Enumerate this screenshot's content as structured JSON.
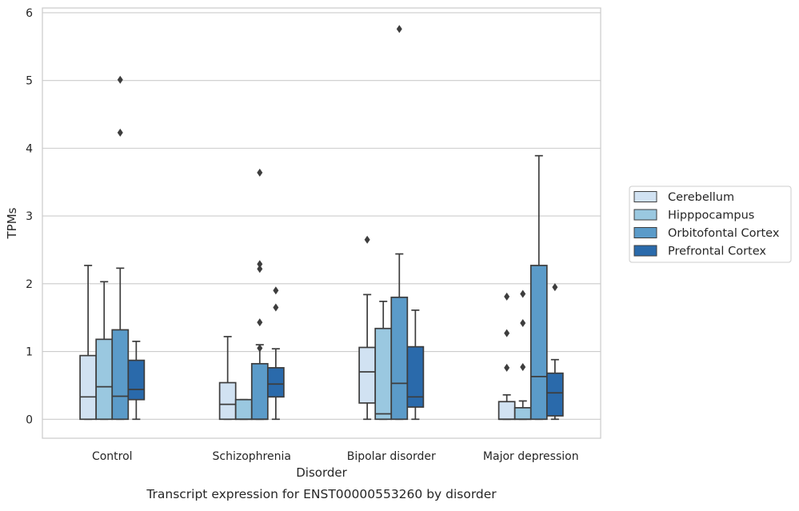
{
  "caption": "Transcript expression for ENST00000553260 by disorder",
  "chart_data": {
    "type": "boxplot",
    "xlabel": "Disorder",
    "ylabel": "TPMs",
    "ylim": [
      -0.28,
      6.07
    ],
    "yticks": [
      0,
      1,
      2,
      3,
      4,
      5,
      6
    ],
    "grid": "horizontal",
    "legend_position": "right",
    "categories": [
      "Control",
      "Schizophrenia",
      "Bipolar disorder",
      "Major depression"
    ],
    "series": [
      {
        "name": "Cerebellum",
        "color": "#d1e2f2",
        "boxes": [
          {
            "whislo": 0.0,
            "q1": 0.0,
            "med": 0.33,
            "q3": 0.94,
            "whishi": 2.27,
            "fliers": []
          },
          {
            "whislo": 0.0,
            "q1": 0.0,
            "med": 0.22,
            "q3": 0.54,
            "whishi": 1.22,
            "fliers": []
          },
          {
            "whislo": 0.0,
            "q1": 0.24,
            "med": 0.7,
            "q3": 1.06,
            "whishi": 1.84,
            "fliers": [
              2.65
            ]
          },
          {
            "whislo": 0.0,
            "q1": 0.0,
            "med": 0.0,
            "q3": 0.26,
            "whishi": 0.36,
            "fliers": [
              0.76,
              1.27,
              1.81
            ]
          }
        ]
      },
      {
        "name": "Hipppocampus",
        "color": "#9ac8e0",
        "boxes": [
          {
            "whislo": 0.0,
            "q1": 0.0,
            "med": 0.48,
            "q3": 1.18,
            "whishi": 2.03,
            "fliers": []
          },
          {
            "whislo": 0.0,
            "q1": 0.0,
            "med": 0.0,
            "q3": 0.29,
            "whishi": 0.29,
            "fliers": []
          },
          {
            "whislo": 0.0,
            "q1": 0.0,
            "med": 0.08,
            "q3": 1.34,
            "whishi": 1.74,
            "fliers": []
          },
          {
            "whislo": 0.0,
            "q1": 0.0,
            "med": 0.0,
            "q3": 0.17,
            "whishi": 0.27,
            "fliers": [
              0.77,
              1.42,
              1.85
            ]
          }
        ]
      },
      {
        "name": "Orbitofontal Cortex",
        "color": "#5b9bc9",
        "boxes": [
          {
            "whislo": 0.0,
            "q1": 0.0,
            "med": 0.34,
            "q3": 1.32,
            "whishi": 2.23,
            "fliers": [
              4.23,
              5.01
            ]
          },
          {
            "whislo": 0.0,
            "q1": 0.0,
            "med": 0.0,
            "q3": 0.82,
            "whishi": 1.1,
            "fliers": [
              1.05,
              1.43,
              2.22,
              2.29,
              3.64
            ]
          },
          {
            "whislo": 0.0,
            "q1": 0.0,
            "med": 0.53,
            "q3": 1.8,
            "whishi": 2.44,
            "fliers": [
              5.76
            ]
          },
          {
            "whislo": 0.0,
            "q1": 0.0,
            "med": 0.63,
            "q3": 2.27,
            "whishi": 3.89,
            "fliers": []
          }
        ]
      },
      {
        "name": "Prefrontal Cortex",
        "color": "#2a6aab",
        "boxes": [
          {
            "whislo": 0.0,
            "q1": 0.29,
            "med": 0.44,
            "q3": 0.87,
            "whishi": 1.15,
            "fliers": []
          },
          {
            "whislo": 0.0,
            "q1": 0.33,
            "med": 0.52,
            "q3": 0.76,
            "whishi": 1.04,
            "fliers": [
              1.65,
              1.9
            ]
          },
          {
            "whislo": 0.0,
            "q1": 0.18,
            "med": 0.33,
            "q3": 1.07,
            "whishi": 1.61,
            "fliers": []
          },
          {
            "whislo": 0.0,
            "q1": 0.05,
            "med": 0.39,
            "q3": 0.68,
            "whishi": 0.88,
            "fliers": [
              1.95
            ]
          }
        ]
      }
    ]
  }
}
